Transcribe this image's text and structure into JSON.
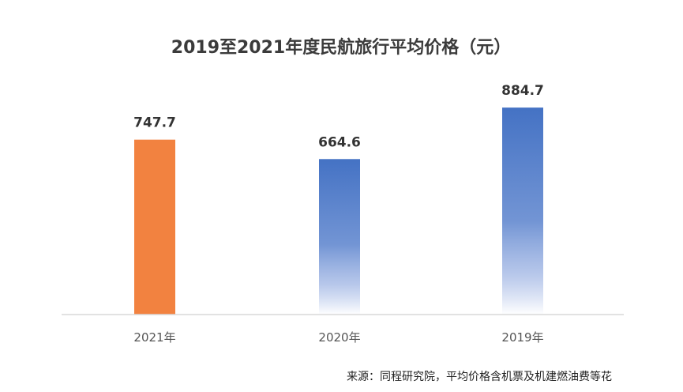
{
  "chart_data": {
    "type": "bar",
    "title": "2019至2021年度民航旅行平均价格（元）",
    "categories": [
      "2021年",
      "2020年",
      "2019年"
    ],
    "values": [
      747.7,
      664.6,
      884.7
    ],
    "value_labels": [
      "747.7",
      "664.6",
      "884.7"
    ],
    "ylim": [
      0,
      1000
    ],
    "grid": false,
    "bar_colors": [
      "#F28240",
      "#4472C4",
      "#4472C4"
    ],
    "gradient_fade": [
      false,
      true,
      true
    ],
    "source": "来源：同程研究院，平均价格含机票及机建燃油费等花"
  }
}
